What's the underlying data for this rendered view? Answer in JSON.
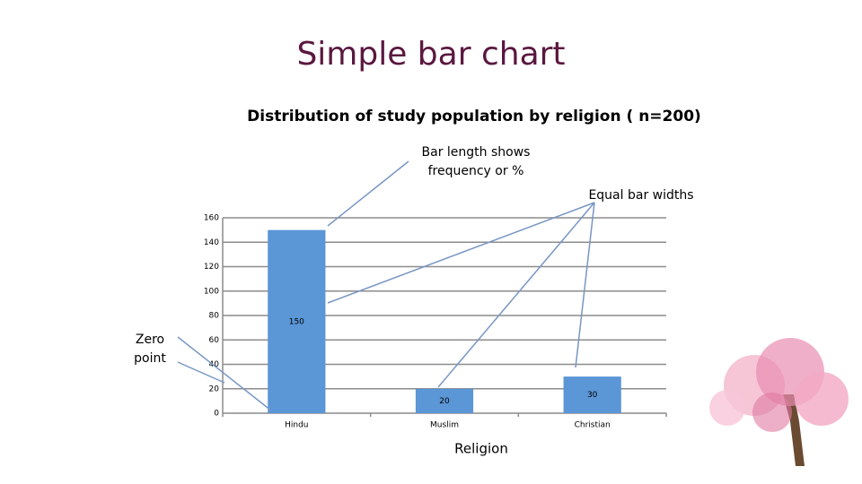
{
  "slide_title": "Simple bar chart",
  "annotations": [
    {
      "lines": [
        "Bar length shows",
        "frequency or %"
      ]
    },
    {
      "lines": [
        "Equal bar widths"
      ]
    },
    {
      "lines": [
        "Zero",
        "point"
      ]
    }
  ],
  "chart_data": {
    "type": "bar",
    "title": "Distribution of study population by religion ( n=200)",
    "x_label": "Religion",
    "categories": [
      "Hindu",
      "Muslim",
      "Christian"
    ],
    "values": [
      150,
      20,
      30
    ],
    "color": "#5b96d6",
    "ylim": [
      0,
      160
    ],
    "yticks": [
      0,
      20,
      40,
      60,
      80,
      100,
      120,
      140,
      160
    ],
    "grid": true
  }
}
